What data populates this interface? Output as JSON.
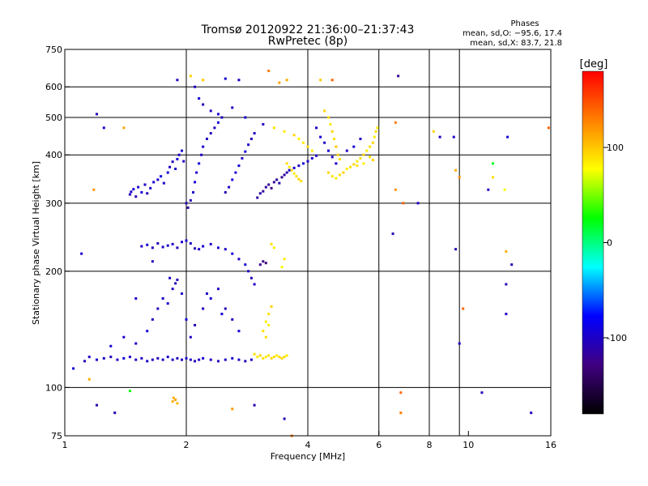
{
  "chart_data": {
    "type": "scatter",
    "title": "Tromsø 20120922 21:36:00–21:37:43",
    "subtitle": "RwPretec (8p)",
    "xlabel": "Frequency [MHz]",
    "ylabel": "Stationary phase Virtual Height [km]",
    "x_scale": "log",
    "y_scale": "log",
    "xlim": [
      1,
      16
    ],
    "ylim": [
      75,
      750
    ],
    "x_ticks": [
      1,
      2,
      4,
      6,
      8,
      10,
      16
    ],
    "y_ticks": [
      75,
      100,
      200,
      300,
      400,
      500,
      600,
      750
    ],
    "x_gridlines": [
      2,
      4,
      6,
      8,
      9.5
    ],
    "y_gridlines": [
      100,
      200,
      300,
      400,
      500,
      600
    ],
    "phases_box": {
      "title": "Phases",
      "line1": "mean, sd,O: −95.6, 17.4",
      "line2": "mean, sd,X: 83.7, 21.8"
    },
    "colorbar": {
      "label": "[deg]",
      "range": [
        -180,
        180
      ],
      "ticks": [
        100,
        0,
        -100
      ],
      "colors": [
        "#ff0000",
        "#ff8000",
        "#ffff00",
        "#00ff00",
        "#00ffff",
        "#0000ff",
        "#400080",
        "#000000"
      ]
    },
    "points": [
      [
        1.45,
        316,
        -105
      ],
      [
        1.46,
        321,
        -100
      ],
      [
        1.48,
        326,
        -95
      ],
      [
        1.5,
        312,
        -110
      ],
      [
        1.52,
        330,
        -100
      ],
      [
        1.55,
        320,
        -95
      ],
      [
        1.58,
        335,
        -100
      ],
      [
        1.6,
        318,
        -105
      ],
      [
        1.63,
        328,
        -100
      ],
      [
        1.66,
        340,
        -95
      ],
      [
        1.7,
        345,
        -100
      ],
      [
        1.73,
        352,
        -90
      ],
      [
        1.76,
        338,
        -100
      ],
      [
        1.8,
        360,
        -95
      ],
      [
        1.82,
        372,
        -100
      ],
      [
        1.85,
        384,
        -105
      ],
      [
        1.88,
        368,
        -100
      ],
      [
        1.9,
        390,
        -95
      ],
      [
        1.92,
        400,
        -100
      ],
      [
        1.95,
        410,
        -95
      ],
      [
        1.97,
        385,
        -100
      ],
      [
        2.0,
        300,
        -110
      ],
      [
        2.02,
        292,
        -115
      ],
      [
        2.05,
        305,
        -105
      ],
      [
        2.08,
        320,
        -100
      ],
      [
        2.1,
        340,
        -95
      ],
      [
        2.12,
        360,
        -100
      ],
      [
        2.15,
        380,
        -95
      ],
      [
        2.18,
        400,
        -100
      ],
      [
        2.2,
        420,
        -95
      ],
      [
        2.25,
        440,
        -100
      ],
      [
        2.3,
        455,
        -105
      ],
      [
        2.35,
        470,
        -100
      ],
      [
        2.4,
        485,
        -95
      ],
      [
        2.45,
        500,
        -100
      ],
      [
        2.5,
        320,
        -110
      ],
      [
        2.55,
        330,
        -100
      ],
      [
        2.6,
        345,
        -95
      ],
      [
        2.65,
        360,
        -100
      ],
      [
        2.7,
        375,
        -95
      ],
      [
        2.75,
        392,
        -100
      ],
      [
        2.8,
        408,
        -95
      ],
      [
        2.85,
        425,
        -100
      ],
      [
        2.9,
        440,
        -105
      ],
      [
        2.95,
        455,
        -100
      ],
      [
        3.0,
        310,
        -115
      ],
      [
        3.05,
        318,
        -110
      ],
      [
        3.1,
        322,
        -120
      ],
      [
        3.15,
        330,
        -115
      ],
      [
        3.2,
        335,
        -120
      ],
      [
        3.25,
        328,
        -125
      ],
      [
        3.3,
        340,
        -120
      ],
      [
        3.35,
        345,
        -115
      ],
      [
        3.4,
        338,
        -110
      ],
      [
        3.45,
        350,
        -120
      ],
      [
        3.5,
        355,
        -115
      ],
      [
        3.55,
        360,
        -110
      ],
      [
        3.6,
        365,
        -100
      ],
      [
        3.7,
        370,
        -95
      ],
      [
        3.8,
        375,
        -100
      ],
      [
        3.9,
        380,
        -95
      ],
      [
        4.0,
        385,
        -100
      ],
      [
        4.1,
        392,
        -95
      ],
      [
        4.2,
        398,
        -100
      ],
      [
        2.1,
        600,
        -100
      ],
      [
        2.15,
        560,
        -95
      ],
      [
        2.2,
        540,
        -105
      ],
      [
        2.3,
        520,
        -100
      ],
      [
        2.4,
        510,
        -95
      ],
      [
        2.6,
        530,
        -100
      ],
      [
        2.8,
        500,
        -95
      ],
      [
        3.1,
        480,
        -100
      ],
      [
        3.3,
        470,
        90
      ],
      [
        3.5,
        460,
        85
      ],
      [
        3.7,
        450,
        95
      ],
      [
        3.8,
        440,
        80
      ],
      [
        3.9,
        430,
        85
      ],
      [
        4.0,
        420,
        90
      ],
      [
        4.1,
        410,
        85
      ],
      [
        3.55,
        380,
        90
      ],
      [
        3.6,
        372,
        85
      ],
      [
        3.65,
        365,
        90
      ],
      [
        3.7,
        358,
        85
      ],
      [
        3.75,
        352,
        90
      ],
      [
        3.8,
        346,
        95
      ],
      [
        3.85,
        342,
        90
      ],
      [
        4.4,
        520,
        95
      ],
      [
        4.5,
        500,
        90
      ],
      [
        4.55,
        480,
        85
      ],
      [
        4.6,
        460,
        95
      ],
      [
        4.65,
        440,
        90
      ],
      [
        4.7,
        420,
        100
      ],
      [
        4.75,
        400,
        95
      ],
      [
        4.8,
        390,
        90
      ],
      [
        4.5,
        360,
        95
      ],
      [
        4.6,
        352,
        90
      ],
      [
        4.7,
        348,
        85
      ],
      [
        4.8,
        355,
        90
      ],
      [
        4.9,
        360,
        95
      ],
      [
        5.0,
        368,
        85
      ],
      [
        5.1,
        372,
        90
      ],
      [
        5.2,
        378,
        95
      ],
      [
        5.3,
        385,
        85
      ],
      [
        5.4,
        392,
        90
      ],
      [
        5.5,
        400,
        95
      ],
      [
        5.6,
        410,
        85
      ],
      [
        5.7,
        420,
        90
      ],
      [
        5.8,
        430,
        95
      ],
      [
        5.85,
        445,
        85
      ],
      [
        5.9,
        460,
        90
      ],
      [
        5.95,
        470,
        85
      ],
      [
        5.7,
        395,
        90
      ],
      [
        5.8,
        388,
        95
      ],
      [
        5.5,
        380,
        85
      ],
      [
        5.3,
        375,
        90
      ],
      [
        4.2,
        470,
        -100
      ],
      [
        4.3,
        445,
        -95
      ],
      [
        4.4,
        430,
        -100
      ],
      [
        4.5,
        410,
        -95
      ],
      [
        4.6,
        395,
        -100
      ],
      [
        4.7,
        380,
        -95
      ],
      [
        5.0,
        410,
        -100
      ],
      [
        5.2,
        420,
        -95
      ],
      [
        5.4,
        440,
        -100
      ],
      [
        1.55,
        232,
        -100
      ],
      [
        1.6,
        234,
        -95
      ],
      [
        1.65,
        230,
        -100
      ],
      [
        1.7,
        236,
        -105
      ],
      [
        1.75,
        231,
        -100
      ],
      [
        1.8,
        233,
        -95
      ],
      [
        1.85,
        235,
        -100
      ],
      [
        1.9,
        230,
        -105
      ],
      [
        1.95,
        238,
        -100
      ],
      [
        2.0,
        240,
        -95
      ],
      [
        2.05,
        236,
        -100
      ],
      [
        2.1,
        229,
        -105
      ],
      [
        2.15,
        228,
        -100
      ],
      [
        2.2,
        232,
        -95
      ],
      [
        2.3,
        235,
        -100
      ],
      [
        2.4,
        230,
        -95
      ],
      [
        2.5,
        228,
        -100
      ],
      [
        2.6,
        222,
        -95
      ],
      [
        2.7,
        215,
        -100
      ],
      [
        2.8,
        208,
        -95
      ],
      [
        2.85,
        200,
        -100
      ],
      [
        2.9,
        192,
        -105
      ],
      [
        2.95,
        185,
        -100
      ],
      [
        3.05,
        208,
        -120
      ],
      [
        3.1,
        212,
        -125
      ],
      [
        3.15,
        210,
        -130
      ],
      [
        3.25,
        235,
        90
      ],
      [
        3.3,
        230,
        85
      ],
      [
        3.45,
        205,
        80
      ],
      [
        3.5,
        215,
        85
      ],
      [
        1.12,
        117,
        -105
      ],
      [
        1.15,
        120,
        -100
      ],
      [
        1.2,
        118,
        -95
      ],
      [
        1.25,
        119,
        -100
      ],
      [
        1.3,
        120,
        -105
      ],
      [
        1.35,
        118,
        -100
      ],
      [
        1.4,
        119,
        -95
      ],
      [
        1.45,
        120,
        -100
      ],
      [
        1.5,
        118,
        -105
      ],
      [
        1.55,
        119,
        -100
      ],
      [
        1.6,
        117,
        -95
      ],
      [
        1.65,
        118,
        -100
      ],
      [
        1.7,
        119,
        -105
      ],
      [
        1.75,
        118,
        -100
      ],
      [
        1.8,
        120,
        -95
      ],
      [
        1.85,
        118,
        -100
      ],
      [
        1.9,
        119,
        -105
      ],
      [
        1.95,
        118,
        -100
      ],
      [
        2.0,
        119,
        -95
      ],
      [
        2.05,
        118,
        -100
      ],
      [
        2.1,
        117,
        -105
      ],
      [
        2.15,
        118,
        -100
      ],
      [
        2.2,
        119,
        -95
      ],
      [
        2.3,
        118,
        -100
      ],
      [
        2.4,
        117,
        -105
      ],
      [
        2.5,
        118,
        -100
      ],
      [
        2.6,
        119,
        -95
      ],
      [
        2.7,
        118,
        -100
      ],
      [
        2.8,
        117,
        -105
      ],
      [
        2.9,
        118,
        -100
      ],
      [
        1.5,
        130,
        -100
      ],
      [
        1.6,
        140,
        -95
      ],
      [
        1.65,
        150,
        -100
      ],
      [
        1.7,
        160,
        -105
      ],
      [
        1.75,
        170,
        -100
      ],
      [
        1.8,
        165,
        -95
      ],
      [
        1.85,
        180,
        -100
      ],
      [
        1.9,
        190,
        -105
      ],
      [
        1.95,
        175,
        -100
      ],
      [
        2.0,
        150,
        -95
      ],
      [
        2.05,
        135,
        -100
      ],
      [
        2.1,
        145,
        -105
      ],
      [
        2.2,
        160,
        -100
      ],
      [
        2.3,
        170,
        -95
      ],
      [
        2.4,
        180,
        -100
      ],
      [
        2.5,
        160,
        -105
      ],
      [
        2.6,
        150,
        -100
      ],
      [
        2.7,
        140,
        -95
      ],
      [
        1.4,
        135,
        -100
      ],
      [
        1.3,
        128,
        -95
      ],
      [
        1.82,
        192,
        -100
      ],
      [
        1.88,
        186,
        -105
      ],
      [
        2.25,
        175,
        -100
      ],
      [
        2.45,
        155,
        -95
      ],
      [
        2.95,
        122,
        90
      ],
      [
        3.0,
        120,
        85
      ],
      [
        3.05,
        121,
        95
      ],
      [
        3.1,
        119,
        90
      ],
      [
        3.15,
        120,
        85
      ],
      [
        3.2,
        121,
        90
      ],
      [
        3.25,
        119,
        95
      ],
      [
        3.3,
        120,
        90
      ],
      [
        3.35,
        121,
        85
      ],
      [
        3.4,
        120,
        90
      ],
      [
        3.45,
        119,
        95
      ],
      [
        3.5,
        120,
        90
      ],
      [
        3.55,
        121,
        85
      ],
      [
        3.1,
        140,
        90
      ],
      [
        3.15,
        148,
        85
      ],
      [
        3.2,
        155,
        90
      ],
      [
        3.25,
        162,
        95
      ],
      [
        3.2,
        145,
        85
      ],
      [
        3.15,
        135,
        90
      ],
      [
        1.85,
        92,
        110
      ],
      [
        1.88,
        93,
        115
      ],
      [
        1.9,
        91,
        105
      ],
      [
        1.86,
        94,
        110
      ],
      [
        1.9,
        625,
        -100
      ],
      [
        2.05,
        640,
        95
      ],
      [
        2.2,
        625,
        100
      ],
      [
        2.5,
        630,
        -95
      ],
      [
        2.7,
        625,
        -100
      ],
      [
        3.2,
        660,
        130
      ],
      [
        3.4,
        615,
        115
      ],
      [
        3.55,
        625,
        110
      ],
      [
        4.3,
        625,
        100
      ],
      [
        4.6,
        625,
        140
      ],
      [
        6.7,
        640,
        -120
      ],
      [
        1.2,
        510,
        -105
      ],
      [
        1.25,
        470,
        -100
      ],
      [
        1.4,
        470,
        115
      ],
      [
        1.18,
        325,
        120
      ],
      [
        1.1,
        222,
        -100
      ],
      [
        1.05,
        112,
        -95
      ],
      [
        1.15,
        105,
        110
      ],
      [
        1.2,
        90,
        -110
      ],
      [
        1.33,
        86,
        -105
      ],
      [
        1.45,
        98,
        25
      ],
      [
        1.5,
        170,
        -100
      ],
      [
        1.65,
        212,
        -100
      ],
      [
        2.6,
        88,
        120
      ],
      [
        2.95,
        90,
        -110
      ],
      [
        3.5,
        83,
        -105
      ],
      [
        3.65,
        75,
        130
      ],
      [
        6.8,
        97,
        140
      ],
      [
        6.8,
        86,
        130
      ],
      [
        6.6,
        485,
        130
      ],
      [
        6.6,
        325,
        120
      ],
      [
        6.5,
        250,
        -110
      ],
      [
        6.9,
        300,
        140
      ],
      [
        8.2,
        460,
        95
      ],
      [
        8.5,
        445,
        -100
      ],
      [
        9.2,
        445,
        -100
      ],
      [
        9.3,
        365,
        110
      ],
      [
        9.3,
        228,
        -110
      ],
      [
        9.5,
        350,
        120
      ],
      [
        9.5,
        130,
        -100
      ],
      [
        9.7,
        160,
        140
      ],
      [
        11.2,
        325,
        -100
      ],
      [
        11.5,
        350,
        90
      ],
      [
        11.5,
        380,
        20
      ],
      [
        12.4,
        225,
        110
      ],
      [
        12.4,
        185,
        -110
      ],
      [
        12.4,
        155,
        -100
      ],
      [
        12.8,
        208,
        -110
      ],
      [
        12.5,
        445,
        -95
      ],
      [
        14.3,
        86,
        -100
      ],
      [
        15.8,
        470,
        140
      ],
      [
        12.3,
        325,
        80
      ],
      [
        10.8,
        97,
        -105
      ],
      [
        7.5,
        300,
        -100
      ]
    ]
  }
}
